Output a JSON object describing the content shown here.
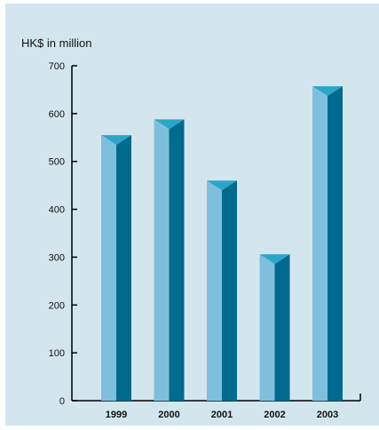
{
  "chart_data": {
    "type": "bar",
    "title": "",
    "ylabel": "HK$ in million",
    "xlabel": "",
    "categories": [
      "1999",
      "2000",
      "2001",
      "2002",
      "2003"
    ],
    "values": [
      555,
      588,
      460,
      306,
      657
    ],
    "ylim": [
      0,
      700
    ],
    "yticks": [
      "0",
      "100",
      "200",
      "300",
      "400",
      "500",
      "600",
      "700"
    ],
    "grid": false,
    "legend": "none",
    "colors": {
      "background": "#d3e6ee",
      "bar_front": "#7fbfde",
      "bar_side": "#006a8f",
      "bar_top": "#2aa6c8",
      "axis": "#000000"
    }
  }
}
